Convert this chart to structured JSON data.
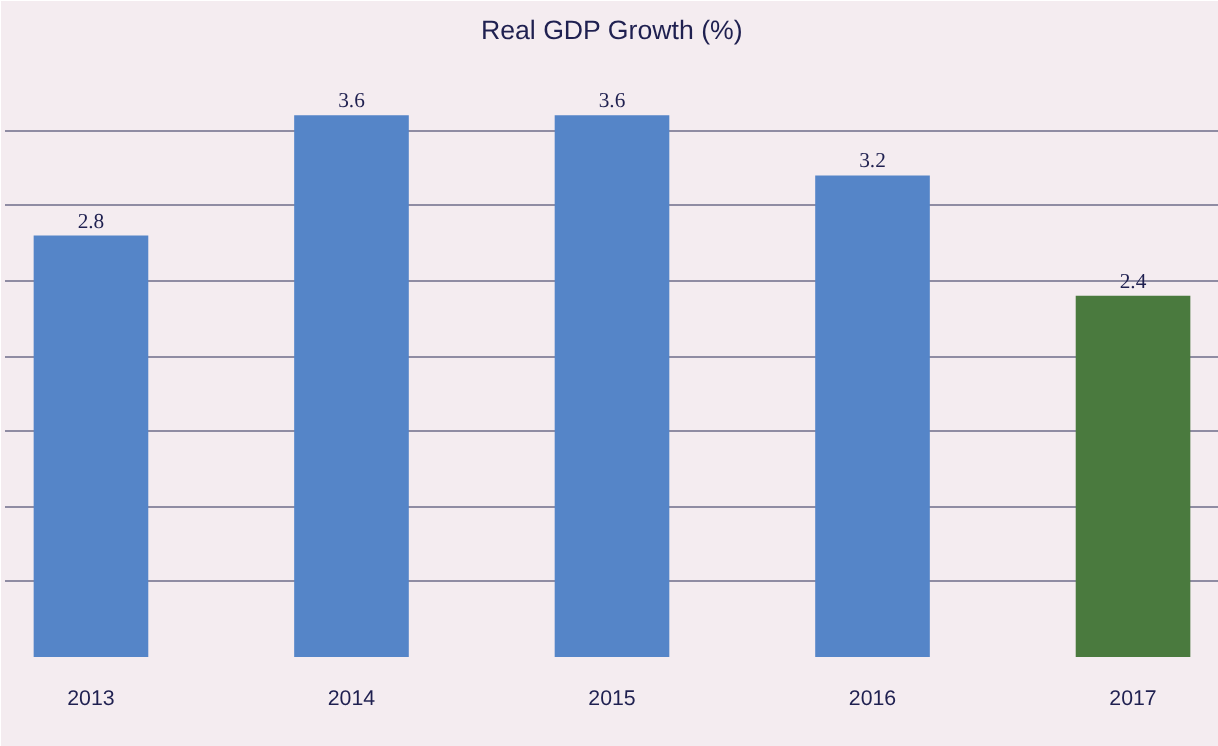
{
  "chart_data": {
    "type": "bar",
    "title": "Real GDP Growth (%)",
    "categories": [
      "2013",
      "2014",
      "2015",
      "2016",
      "2017"
    ],
    "values": [
      2.8,
      3.6,
      3.6,
      3.2,
      2.4
    ],
    "colors": [
      "#5585c8",
      "#5585c8",
      "#5585c8",
      "#5585c8",
      "#4a7a3e"
    ],
    "data_labels": true,
    "ylim": [
      0,
      4
    ],
    "yticks": [
      {
        "value": 0,
        "label": null
      },
      {
        "value": 0.5,
        "label": null
      },
      {
        "value": 1,
        "label": null
      },
      {
        "value": 1.5,
        "label": null
      },
      {
        "value": 2,
        "label": null
      },
      {
        "value": 2.5,
        "label": null
      },
      {
        "value": 3,
        "label": null
      },
      {
        "value": 3.5,
        "label": null
      },
      {
        "value": 4,
        "label": null
      }
    ],
    "tick_labels": "x",
    "grid": "y"
  }
}
